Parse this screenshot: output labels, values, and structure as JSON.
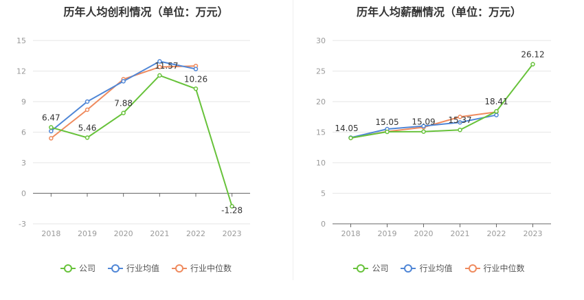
{
  "colors": {
    "company": "#67c23a",
    "industry_avg": "#4f86d6",
    "industry_median": "#ef8a5d",
    "grid": "#e6e6e6",
    "axis": "#999999"
  },
  "legend": {
    "company": "公司",
    "industry_avg": "行业均值",
    "industry_median": "行业中位数"
  },
  "chart_data": [
    {
      "type": "line",
      "title": "历年人均创利情况（单位：万元）",
      "categories": [
        "2018",
        "2019",
        "2020",
        "2021",
        "2022",
        "2023"
      ],
      "ylim": [
        -3,
        15
      ],
      "yticks": [
        -3,
        0,
        3,
        6,
        9,
        12,
        15
      ],
      "series": [
        {
          "name": "公司",
          "key": "company",
          "values": [
            6.47,
            5.46,
            7.88,
            11.57,
            10.26,
            -1.28
          ]
        },
        {
          "name": "行业均值",
          "key": "industry_avg",
          "values": [
            6.1,
            9.0,
            11.0,
            12.95,
            12.2,
            null
          ]
        },
        {
          "name": "行业中位数",
          "key": "industry_median",
          "values": [
            5.4,
            8.2,
            11.2,
            12.4,
            12.5,
            null
          ]
        }
      ],
      "data_labels": [
        {
          "text": "6.47",
          "index": 0
        },
        {
          "text": "5.46",
          "index": 1
        },
        {
          "text": "7.88",
          "index": 2
        },
        {
          "text": "11.57",
          "index": 3
        },
        {
          "text": "10.26",
          "index": 4
        },
        {
          "text": "-1.28",
          "index": 5
        }
      ]
    },
    {
      "type": "line",
      "title": "历年人均薪酬情况（单位：万元）",
      "categories": [
        "2018",
        "2019",
        "2020",
        "2021",
        "2022",
        "2023"
      ],
      "ylim": [
        0,
        30
      ],
      "yticks": [
        0,
        5,
        10,
        15,
        20,
        25,
        30
      ],
      "series": [
        {
          "name": "公司",
          "key": "company",
          "values": [
            14.05,
            15.05,
            15.09,
            15.37,
            18.41,
            26.12
          ]
        },
        {
          "name": "行业均值",
          "key": "industry_avg",
          "values": [
            14.1,
            15.5,
            16.0,
            16.6,
            17.8,
            null
          ]
        },
        {
          "name": "行业中位数",
          "key": "industry_median",
          "values": [
            14.05,
            15.1,
            15.8,
            17.5,
            18.3,
            null
          ]
        }
      ],
      "data_labels": [
        {
          "text": "14.05",
          "index": 0
        },
        {
          "text": "15.05",
          "index": 1
        },
        {
          "text": "15.09",
          "index": 2
        },
        {
          "text": "15.37",
          "index": 3
        },
        {
          "text": "18.41",
          "index": 4
        },
        {
          "text": "26.12",
          "index": 5
        }
      ]
    }
  ]
}
